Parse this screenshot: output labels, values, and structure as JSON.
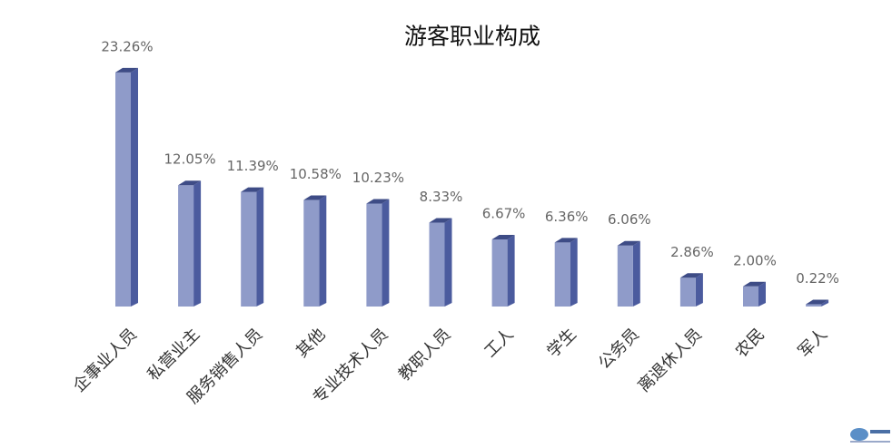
{
  "chart_data": {
    "type": "bar3d",
    "title": "游客职业构成",
    "categories": [
      "企事业人员",
      "私营业主",
      "服务销售人员",
      "其他",
      "专业技术人员",
      "教职人员",
      "工人",
      "学生",
      "公务员",
      "离退休人员",
      "农民",
      "军人"
    ],
    "values": [
      23.26,
      12.05,
      11.39,
      10.58,
      10.23,
      8.33,
      6.67,
      6.36,
      6.06,
      2.86,
      2.0,
      0.22
    ],
    "value_labels": [
      "23.26%",
      "12.05%",
      "11.39%",
      "10.58%",
      "10.23%",
      "8.33%",
      "6.67%",
      "6.36%",
      "6.06%",
      "2.86%",
      "2.00%",
      "0.22%"
    ],
    "color": "#8f9bc9"
  }
}
